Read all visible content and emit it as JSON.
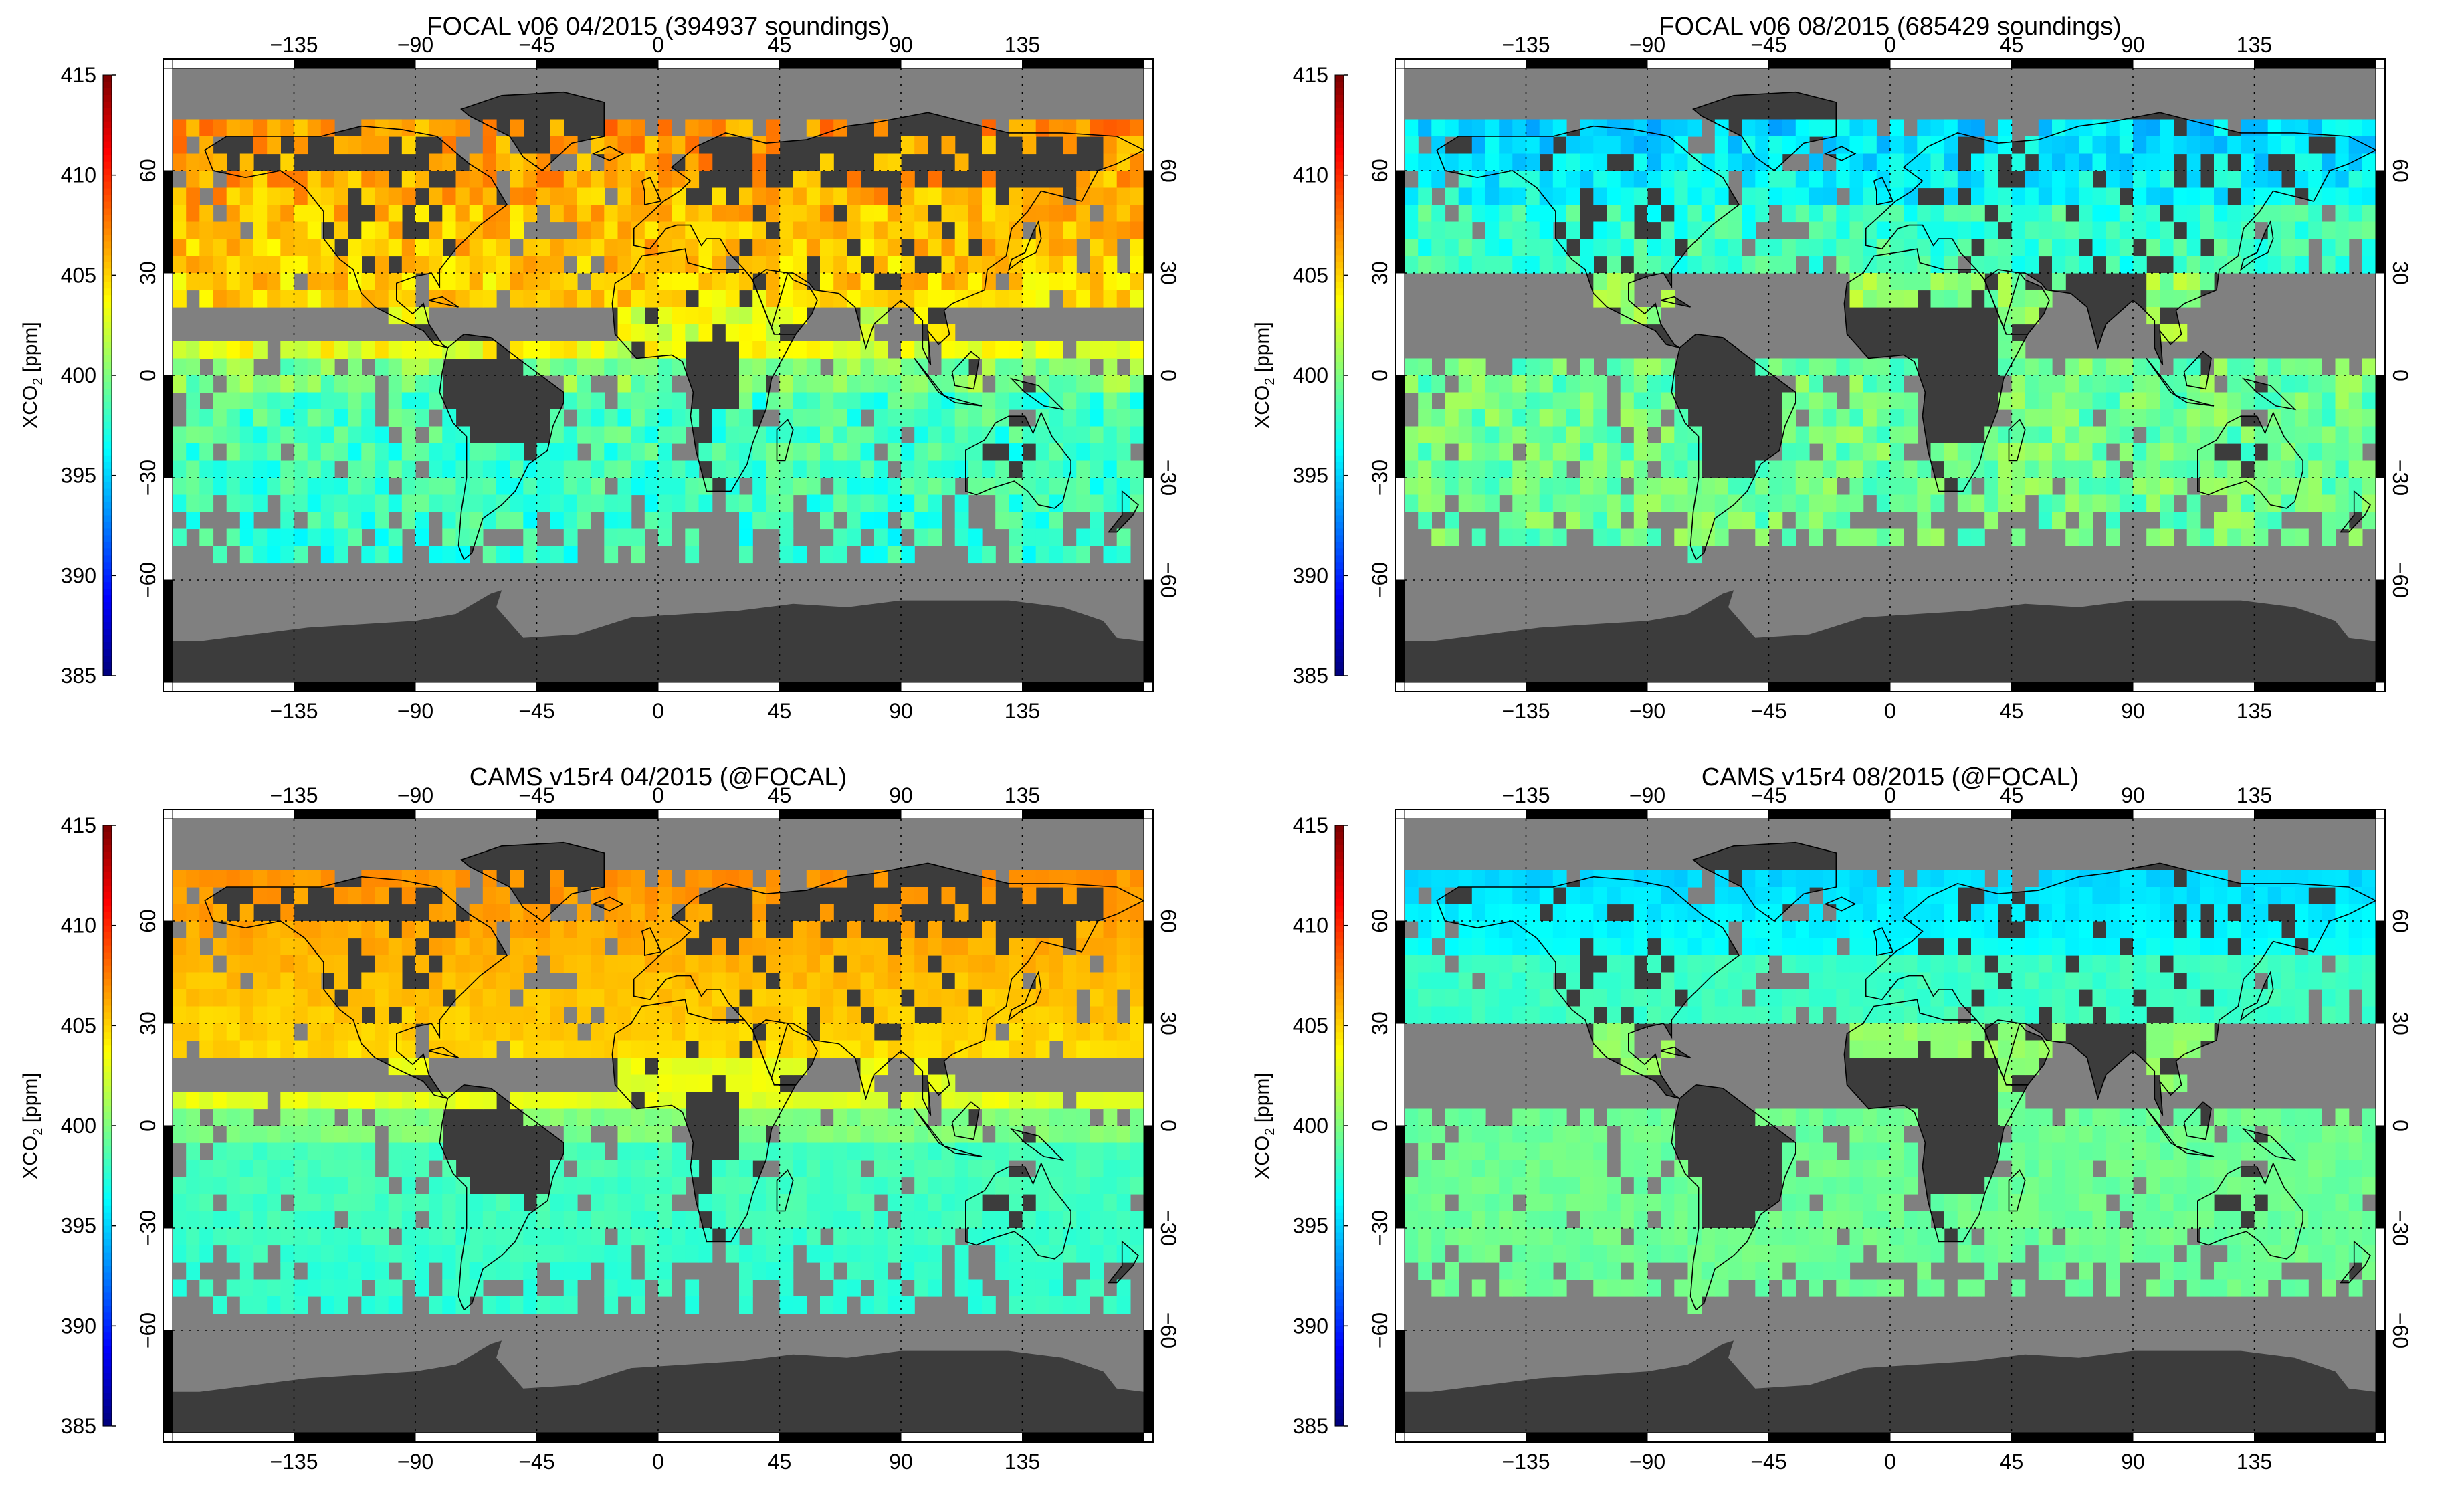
{
  "colorbar": {
    "label_main": "XCO",
    "label_sub": "2",
    "label_unit": " [ppm]",
    "ticks": [
      "415",
      "410",
      "405",
      "400",
      "395",
      "390",
      "385"
    ],
    "range": [
      385,
      415
    ],
    "colormap": "jet"
  },
  "axes": {
    "lon_ticks": [
      "−135",
      "−90",
      "−45",
      "0",
      "45",
      "90",
      "135"
    ],
    "lat_ticks": [
      "60",
      "30",
      "0",
      "−30",
      "−60"
    ]
  },
  "colors": {
    "ocean": "#808080",
    "land_nodata": "#3c3c3c",
    "grid": "#000000",
    "frame": "#000000"
  },
  "panels": [
    {
      "title": "FOCAL v06 04/2015 (394937 soundings)",
      "month": "04",
      "dataset": "FOCAL"
    },
    {
      "title": "FOCAL v06 08/2015 (685429 soundings)",
      "month": "08",
      "dataset": "FOCAL"
    },
    {
      "title": "CAMS v15r4 04/2015 (@FOCAL)",
      "month": "04",
      "dataset": "CAMS"
    },
    {
      "title": "CAMS v15r4 08/2015 (@FOCAL)",
      "month": "08",
      "dataset": "CAMS"
    }
  ]
}
